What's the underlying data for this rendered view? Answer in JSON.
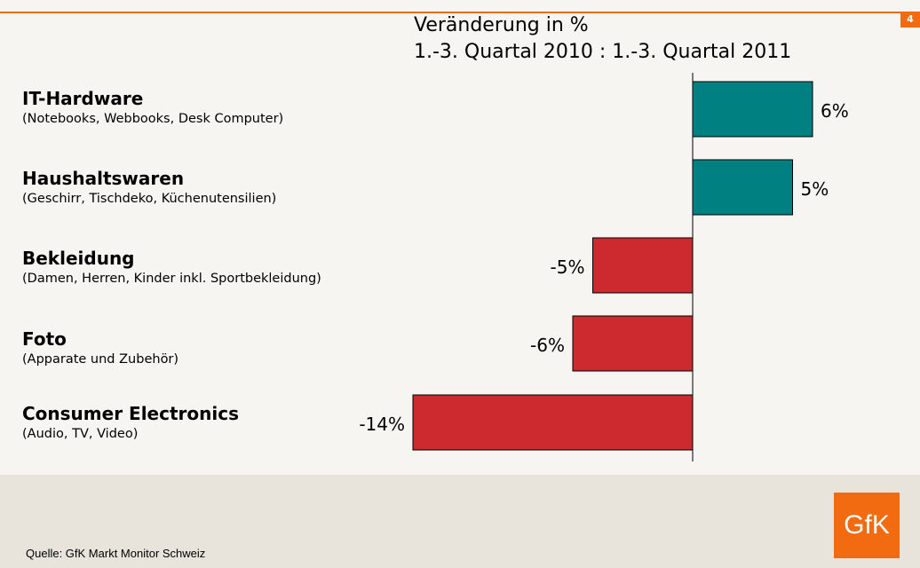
{
  "page_number": "4",
  "source": "Quelle: GfK Markt Monitor Schweiz",
  "logo_text": "GfK",
  "chart_data": {
    "type": "bar",
    "orientation": "horizontal",
    "title": [
      "Veränderung in %",
      "1.-3. Quartal 2010 : 1.-3. Quartal 2011"
    ],
    "categories": [
      {
        "name": "IT-Hardware",
        "sub": "(Notebooks, Webbooks, Desk Computer)"
      },
      {
        "name": "Haushaltswaren",
        "sub": "(Geschirr, Tischdeko, Küchenutensilien)"
      },
      {
        "name": "Bekleidung",
        "sub": "(Damen, Herren, Kinder inkl. Sportbekleidung)"
      },
      {
        "name": "Foto",
        "sub": "(Apparate und Zubehör)"
      },
      {
        "name": "Consumer Electronics",
        "sub": "(Audio, TV, Video)"
      }
    ],
    "values": [
      6,
      5,
      -5,
      -6,
      -14
    ],
    "labels": [
      "6%",
      "5%",
      "-5%",
      "-6%",
      "-14%"
    ],
    "colors": {
      "positive": "#008080",
      "negative": "#cc2a2e"
    },
    "grid": false
  }
}
